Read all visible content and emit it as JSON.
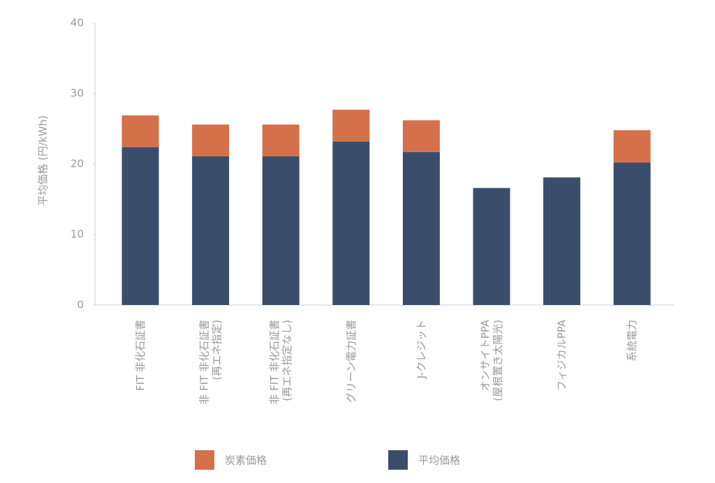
{
  "chart_data": {
    "type": "stacked-bar",
    "ylabel": "平均価格 (円/kWh)",
    "categories": [
      "FIT 非化石証書",
      "非 FIT 非化石証書\n(再エネ指定)",
      "非 FIT 非化石証書\n(再エネ指定なし)",
      "グリーン電力証書",
      "J-クレジット",
      "オンサイトPPA\n(屋根置き太陽光)",
      "フィジカルPPA",
      "系統電力"
    ],
    "series": [
      {
        "name": "炭素価格",
        "color": "#d4714a",
        "values": [
          4.5,
          4.5,
          4.5,
          4.5,
          4.5,
          0,
          0,
          4.6
        ]
      },
      {
        "name": "平均価格",
        "color": "#3a4e6b",
        "values": [
          22.4,
          21.1,
          21.1,
          23.2,
          21.7,
          16.6,
          18.1,
          20.2
        ]
      }
    ],
    "ylim": [
      0,
      40
    ],
    "yticks": [
      0,
      10,
      20,
      30,
      40
    ]
  }
}
